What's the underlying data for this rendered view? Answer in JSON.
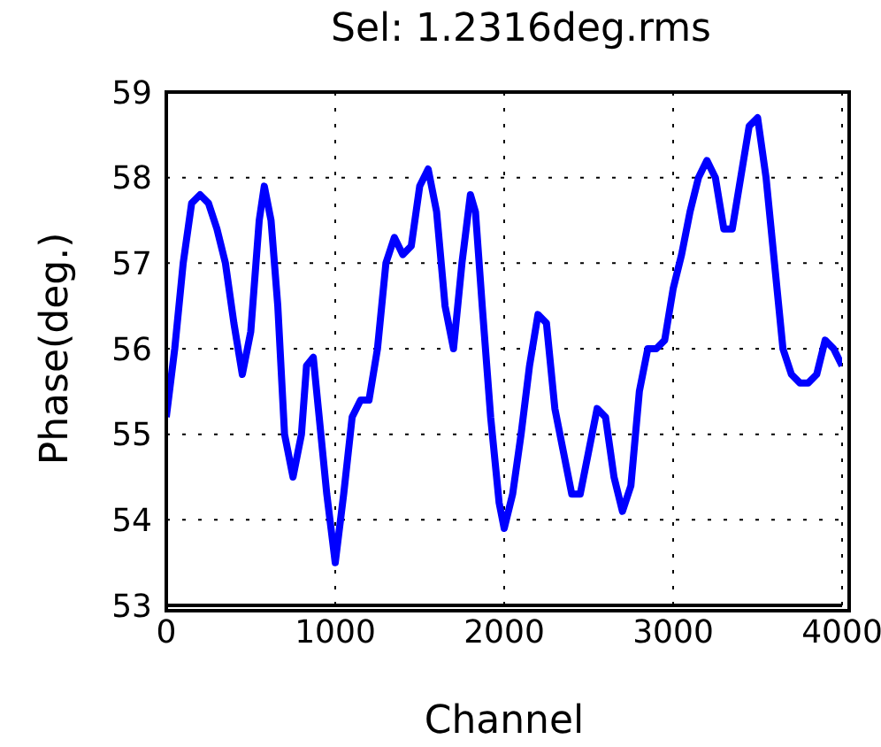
{
  "chart_data": {
    "type": "line",
    "title": "Sel: 1.2316deg.rms",
    "xlabel": "Channel",
    "ylabel": "Phase(deg.)",
    "x": [
      0,
      50,
      100,
      150,
      200,
      250,
      300,
      350,
      400,
      450,
      500,
      550,
      580,
      620,
      660,
      700,
      750,
      800,
      830,
      870,
      900,
      950,
      1000,
      1050,
      1100,
      1150,
      1200,
      1250,
      1300,
      1350,
      1400,
      1450,
      1500,
      1550,
      1600,
      1650,
      1700,
      1750,
      1800,
      1830,
      1870,
      1920,
      1970,
      2000,
      2050,
      2100,
      2150,
      2200,
      2250,
      2300,
      2350,
      2400,
      2450,
      2500,
      2550,
      2600,
      2650,
      2700,
      2750,
      2800,
      2850,
      2900,
      2950,
      3000,
      3050,
      3100,
      3150,
      3200,
      3250,
      3300,
      3350,
      3400,
      3450,
      3500,
      3550,
      3600,
      3650,
      3700,
      3750,
      3800,
      3850,
      3900,
      3950,
      4000
    ],
    "series": [
      {
        "color": "#0000ff",
        "values": [
          55.2,
          56,
          57,
          57.7,
          57.8,
          57.7,
          57.4,
          57,
          56.3,
          55.7,
          56.2,
          57.5,
          57.9,
          57.5,
          56.5,
          55,
          54.5,
          55,
          55.8,
          55.9,
          55.3,
          54.3,
          53.5,
          54.3,
          55.2,
          55.4,
          55.4,
          56,
          57,
          57.3,
          57.1,
          57.2,
          57.9,
          58.1,
          57.6,
          56.5,
          56,
          57,
          57.8,
          57.6,
          56.5,
          55.2,
          54.2,
          53.9,
          54.3,
          55,
          55.8,
          56.4,
          56.3,
          55.3,
          54.8,
          54.3,
          54.3,
          54.8,
          55.3,
          55.2,
          54.5,
          54.1,
          54.4,
          55.5,
          56,
          56,
          56.1,
          56.7,
          57.1,
          57.6,
          58,
          58.2,
          58,
          57.4,
          57.4,
          58,
          58.6,
          58.7,
          58,
          57,
          56,
          55.7,
          55.6,
          55.6,
          55.7,
          56.1,
          56,
          55.8
        ]
      }
    ],
    "xlim": [
      0,
      4000
    ],
    "xticks": [
      0,
      1000,
      2000,
      3000,
      4000
    ],
    "ylim": [
      53,
      59
    ],
    "yticks": [
      53,
      54,
      55,
      56,
      57,
      58,
      59
    ],
    "grid": true,
    "legend": false,
    "marker": "none",
    "line_style": "solid"
  }
}
